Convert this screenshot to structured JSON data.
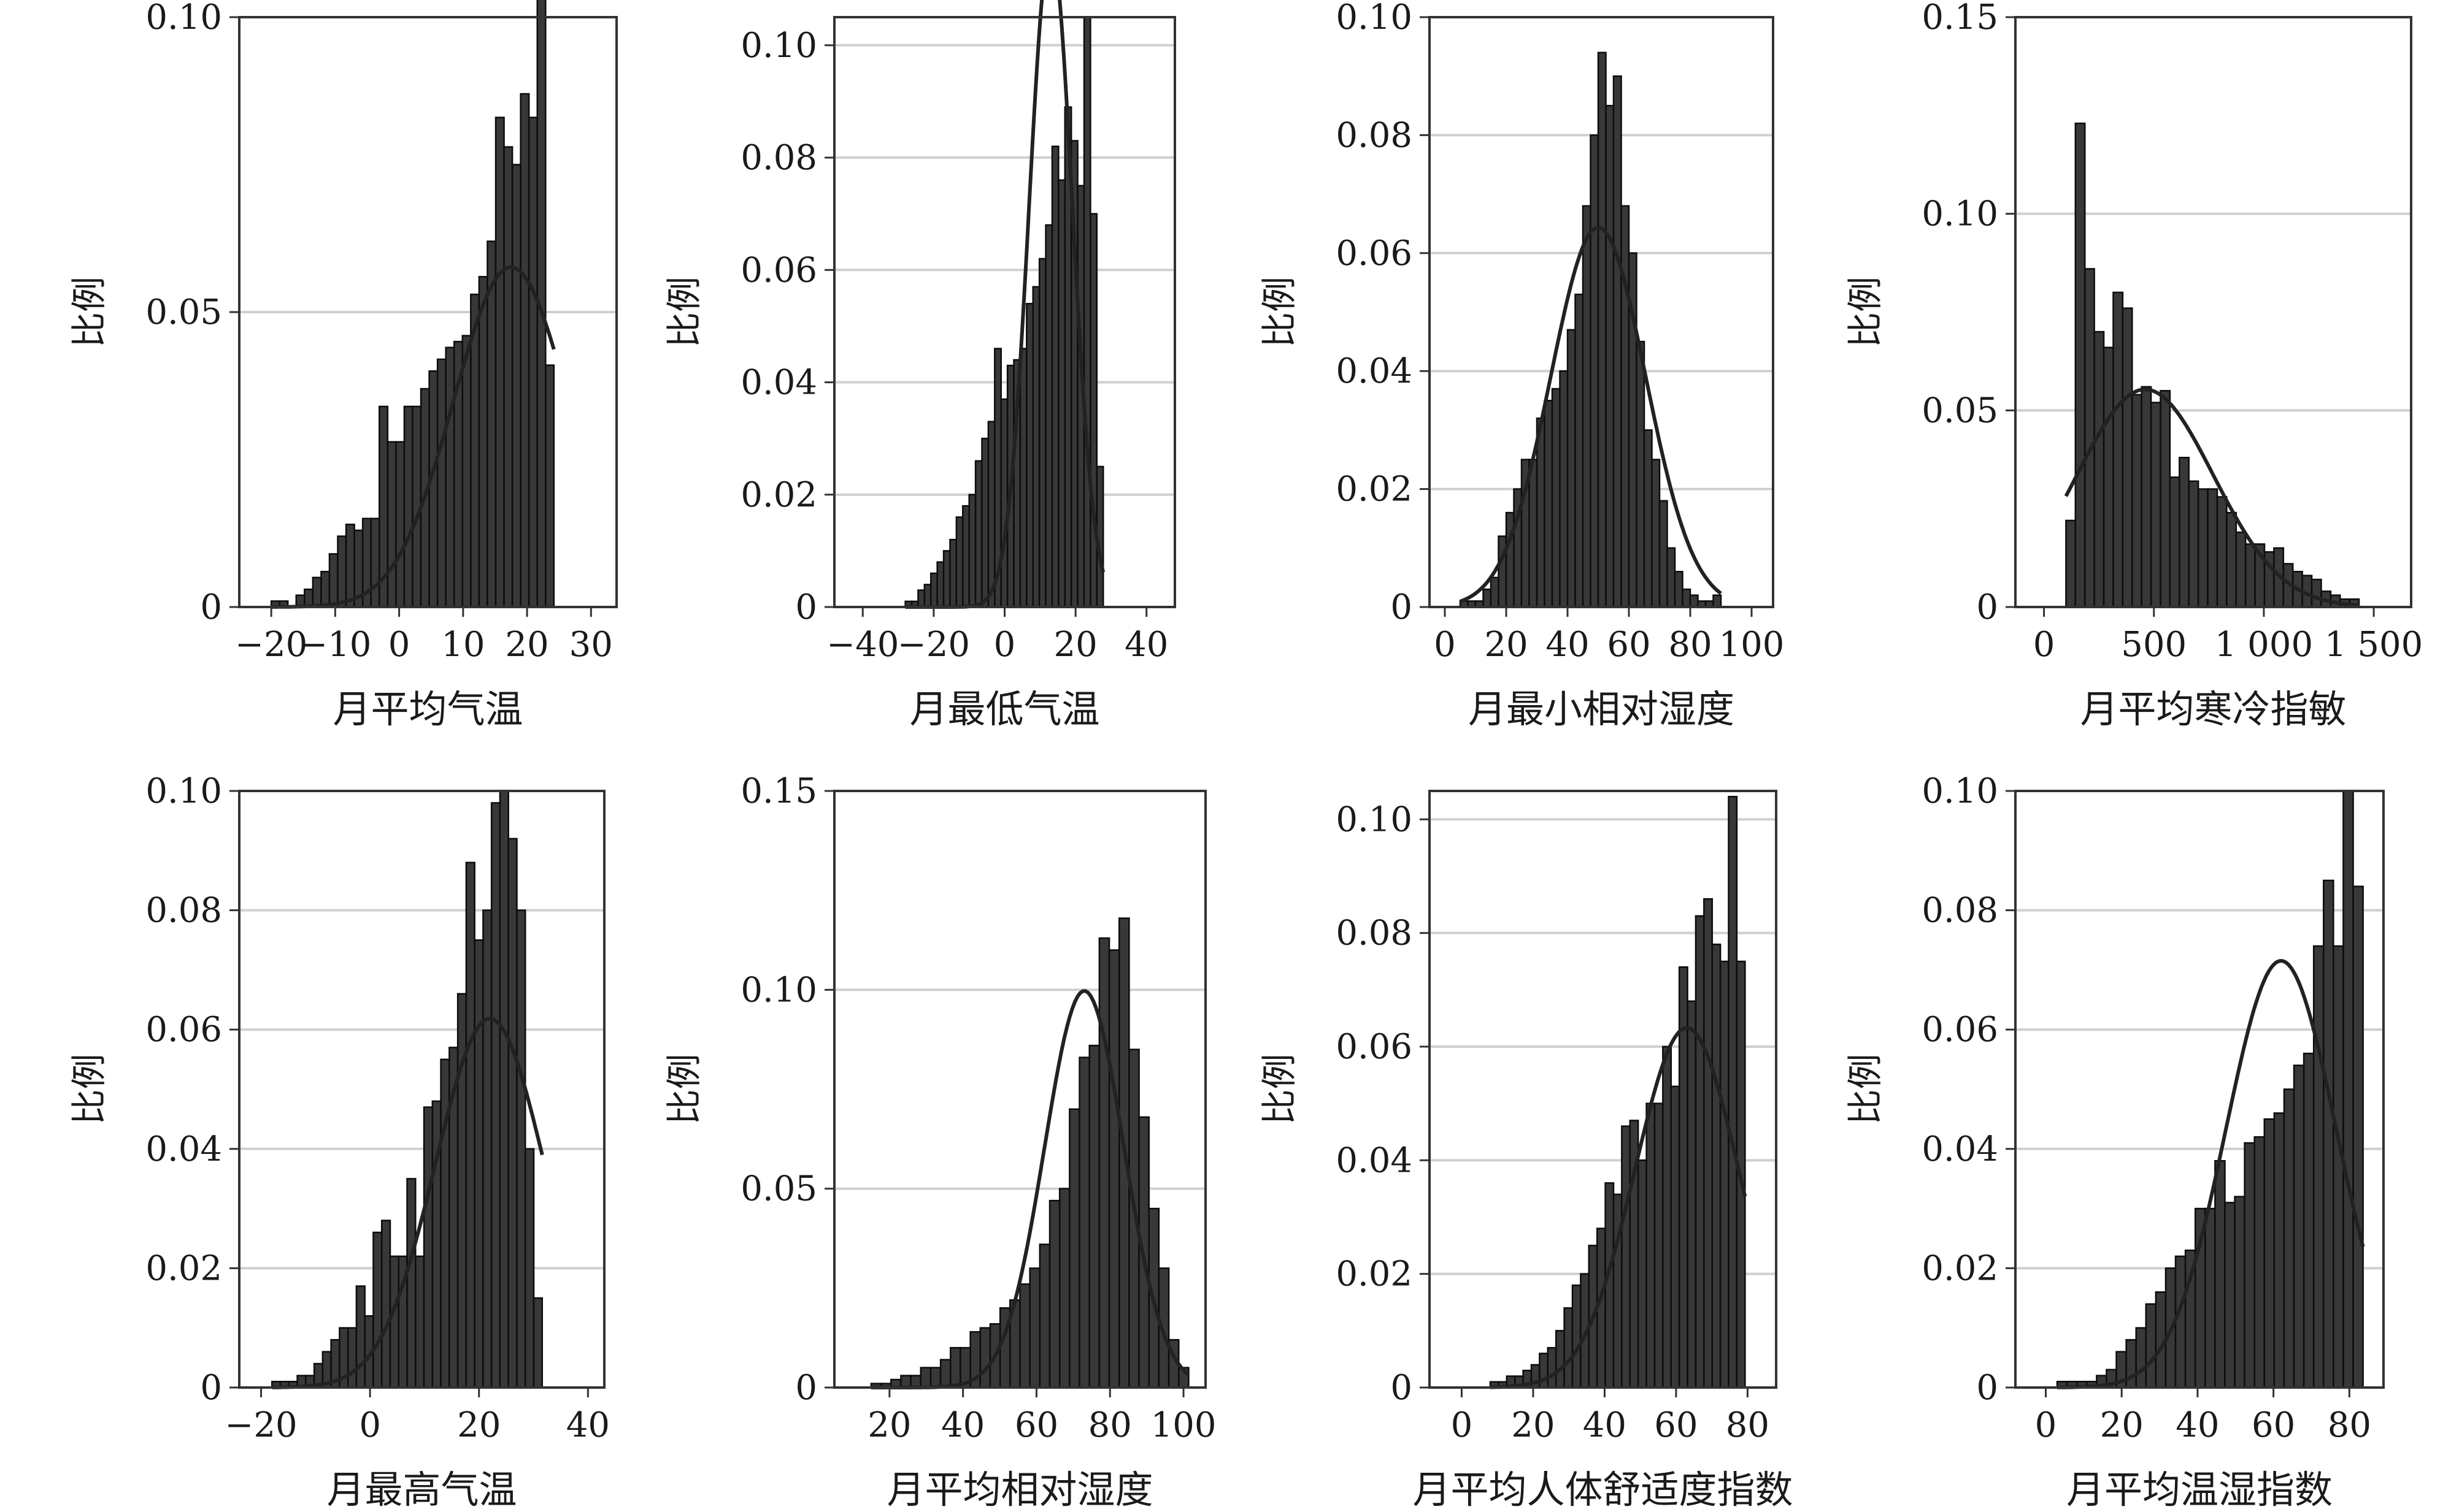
{
  "chart_data": [
    {
      "type": "bar",
      "xlabel": "月平均气温",
      "ylabel": "比例",
      "xlim": [
        -25,
        34
      ],
      "ylim": [
        0,
        0.1
      ],
      "xticks": [
        -20,
        -10,
        0,
        10,
        20,
        30
      ],
      "xtick_labels": [
        "−20",
        "−10",
        "0",
        "10",
        "20",
        "30"
      ],
      "yticks": [
        0,
        0.05,
        0.1
      ],
      "ytick_labels": [
        "0",
        "0.05",
        "0.10"
      ],
      "grid": true,
      "bin_start": -20,
      "bin_width": 1.3,
      "values": [
        0.001,
        0.001,
        0,
        0.002,
        0.003,
        0.005,
        0.006,
        0.009,
        0.012,
        0.014,
        0.013,
        0.015,
        0.015,
        0.034,
        0.028,
        0.028,
        0.034,
        0.034,
        0.037,
        0.04,
        0.042,
        0.044,
        0.045,
        0.046,
        0.053,
        0.056,
        0.062,
        0.083,
        0.078,
        0.075,
        0.087,
        0.083,
        0.113,
        0.041
      ],
      "normal_curve": {
        "mean": 17.5,
        "sd": 9.0
      }
    },
    {
      "type": "bar",
      "xlabel": "月最低气温",
      "ylabel": "比例",
      "xlim": [
        -48,
        48
      ],
      "ylim": [
        0,
        0.105
      ],
      "xticks": [
        -40,
        -20,
        0,
        20,
        40
      ],
      "xtick_labels": [
        "−40",
        "−20",
        "0",
        "20",
        "40"
      ],
      "yticks": [
        0,
        0.02,
        0.04,
        0.06,
        0.08,
        0.1
      ],
      "ytick_labels": [
        "0",
        "0.02",
        "0.04",
        "0.06",
        "0.08",
        "0.10"
      ],
      "grid": true,
      "bin_start": -28,
      "bin_width": 1.8,
      "values": [
        0.001,
        0.001,
        0.003,
        0.004,
        0.006,
        0.008,
        0.01,
        0.012,
        0.016,
        0.018,
        0.02,
        0.026,
        0.03,
        0.033,
        0.046,
        0.037,
        0.043,
        0.044,
        0.046,
        0.054,
        0.057,
        0.062,
        0.068,
        0.082,
        0.076,
        0.089,
        0.083,
        0.075,
        0.105,
        0.07,
        0.025
      ],
      "normal_curve": {
        "mean": 13,
        "sd": 6.1
      }
    },
    {
      "type": "bar",
      "xlabel": "月最小相对湿度",
      "ylabel": "比例",
      "xlim": [
        -5,
        107
      ],
      "ylim": [
        0,
        0.1
      ],
      "xticks": [
        0,
        20,
        40,
        60,
        80,
        100
      ],
      "xtick_labels": [
        "0",
        "20",
        "40",
        "60",
        "80",
        "100"
      ],
      "yticks": [
        0,
        0.02,
        0.04,
        0.06,
        0.08,
        0.1
      ],
      "ytick_labels": [
        "0",
        "0.02",
        "0.04",
        "0.06",
        "0.08",
        "0.10"
      ],
      "grid": true,
      "bin_start": 5,
      "bin_width": 2.5,
      "values": [
        0.001,
        0.001,
        0.001,
        0.003,
        0.005,
        0.012,
        0.016,
        0.02,
        0.025,
        0.025,
        0.032,
        0.035,
        0.037,
        0.04,
        0.047,
        0.053,
        0.068,
        0.08,
        0.094,
        0.085,
        0.09,
        0.068,
        0.06,
        0.045,
        0.03,
        0.025,
        0.018,
        0.01,
        0.006,
        0.003,
        0.002,
        0.001,
        0.001,
        0.002
      ],
      "normal_curve": {
        "mean": 50,
        "sd": 15.5
      }
    },
    {
      "type": "bar",
      "xlabel": "月平均寒冷指敏",
      "ylabel": "比例",
      "xlim": [
        -130,
        1670
      ],
      "ylim": [
        0,
        0.15
      ],
      "xticks": [
        0,
        500,
        1000,
        1500
      ],
      "xtick_labels": [
        "0",
        "500",
        "1 000",
        "1 500"
      ],
      "yticks": [
        0,
        0.05,
        0.1,
        0.15
      ],
      "ytick_labels": [
        "0",
        "0.05",
        "0.10",
        "0.15"
      ],
      "grid": true,
      "bin_start": 100,
      "bin_width": 43,
      "values": [
        0.022,
        0.123,
        0.086,
        0.07,
        0.066,
        0.08,
        0.076,
        0.054,
        0.056,
        0.052,
        0.055,
        0.033,
        0.038,
        0.032,
        0.03,
        0.03,
        0.028,
        0.024,
        0.019,
        0.016,
        0.016,
        0.014,
        0.015,
        0.011,
        0.009,
        0.008,
        0.007,
        0.004,
        0.003,
        0.002,
        0.002
      ],
      "normal_curve": {
        "mean": 460,
        "sd": 310
      }
    },
    {
      "type": "bar",
      "xlabel": "月最高气温",
      "ylabel": "比例",
      "xlim": [
        -24,
        43
      ],
      "ylim": [
        0,
        0.1
      ],
      "xticks": [
        -20,
        0,
        20,
        40
      ],
      "xtick_labels": [
        "−20",
        "0",
        "20",
        "40"
      ],
      "yticks": [
        0,
        0.02,
        0.04,
        0.06,
        0.08,
        0.1
      ],
      "ytick_labels": [
        "0",
        "0.02",
        "0.04",
        "0.06",
        "0.08",
        "0.10"
      ],
      "grid": true,
      "bin_start": -18,
      "bin_width": 1.55,
      "values": [
        0.001,
        0.001,
        0.001,
        0.002,
        0.002,
        0.004,
        0.006,
        0.008,
        0.01,
        0.01,
        0.017,
        0.012,
        0.026,
        0.028,
        0.022,
        0.022,
        0.035,
        0.022,
        0.047,
        0.048,
        0.055,
        0.057,
        0.066,
        0.088,
        0.075,
        0.08,
        0.098,
        0.1,
        0.092,
        0.08,
        0.04,
        0.015
      ],
      "normal_curve": {
        "mean": 22,
        "sd": 10.0
      }
    },
    {
      "type": "bar",
      "xlabel": "月平均相对湿度",
      "ylabel": "比例",
      "xlim": [
        5,
        106
      ],
      "ylim": [
        0,
        0.15
      ],
      "xticks": [
        20,
        40,
        60,
        80,
        100
      ],
      "xtick_labels": [
        "20",
        "40",
        "60",
        "80",
        "100"
      ],
      "yticks": [
        0,
        0.05,
        0.1,
        0.15
      ],
      "ytick_labels": [
        "0",
        "0.05",
        "0.10",
        "0.15"
      ],
      "grid": true,
      "bin_start": 15,
      "bin_width": 2.7,
      "values": [
        0.001,
        0.001,
        0.002,
        0.003,
        0.003,
        0.005,
        0.005,
        0.007,
        0.01,
        0.01,
        0.014,
        0.015,
        0.016,
        0.02,
        0.022,
        0.026,
        0.03,
        0.036,
        0.047,
        0.05,
        0.07,
        0.083,
        0.086,
        0.113,
        0.11,
        0.118,
        0.085,
        0.068,
        0.045,
        0.03,
        0.012,
        0.005
      ],
      "normal_curve": {
        "mean": 73,
        "sd": 10.8
      }
    },
    {
      "type": "bar",
      "xlabel": "月平均人体舒适度指数",
      "ylabel": "比例",
      "xlim": [
        -9,
        88
      ],
      "ylim": [
        0,
        0.105
      ],
      "xticks": [
        0,
        20,
        40,
        60,
        80
      ],
      "xtick_labels": [
        "0",
        "20",
        "40",
        "60",
        "80"
      ],
      "yticks": [
        0,
        0.02,
        0.04,
        0.06,
        0.08,
        0.1
      ],
      "ytick_labels": [
        "0",
        "0.02",
        "0.04",
        "0.06",
        "0.08",
        "0.10"
      ],
      "grid": true,
      "bin_start": 8,
      "bin_width": 2.3,
      "values": [
        0.001,
        0.001,
        0.002,
        0.002,
        0.003,
        0.004,
        0.006,
        0.007,
        0.01,
        0.014,
        0.018,
        0.02,
        0.025,
        0.028,
        0.036,
        0.034,
        0.046,
        0.047,
        0.04,
        0.05,
        0.05,
        0.06,
        0.053,
        0.074,
        0.068,
        0.083,
        0.086,
        0.078,
        0.075,
        0.104,
        0.075
      ],
      "normal_curve": {
        "mean": 63,
        "sd": 14.5
      }
    },
    {
      "type": "bar",
      "xlabel": "月平均温湿指数",
      "ylabel": "比例",
      "xlim": [
        -8,
        89
      ],
      "ylim": [
        0,
        0.1
      ],
      "xticks": [
        0,
        20,
        40,
        60,
        80
      ],
      "xtick_labels": [
        "0",
        "20",
        "40",
        "60",
        "80"
      ],
      "yticks": [
        0,
        0.02,
        0.04,
        0.06,
        0.08,
        0.1
      ],
      "ytick_labels": [
        "0",
        "0.02",
        "0.04",
        "0.06",
        "0.08",
        "0.10"
      ],
      "grid": true,
      "bin_start": 3,
      "bin_width": 2.6,
      "values": [
        0.001,
        0.001,
        0.001,
        0.001,
        0.002,
        0.003,
        0.006,
        0.008,
        0.01,
        0.014,
        0.016,
        0.02,
        0.022,
        0.023,
        0.03,
        0.03,
        0.038,
        0.031,
        0.032,
        0.041,
        0.042,
        0.045,
        0.046,
        0.05,
        0.054,
        0.056,
        0.074,
        0.085,
        0.074,
        0.1,
        0.084
      ],
      "normal_curve": {
        "mean": 62,
        "sd": 14.5
      }
    }
  ]
}
